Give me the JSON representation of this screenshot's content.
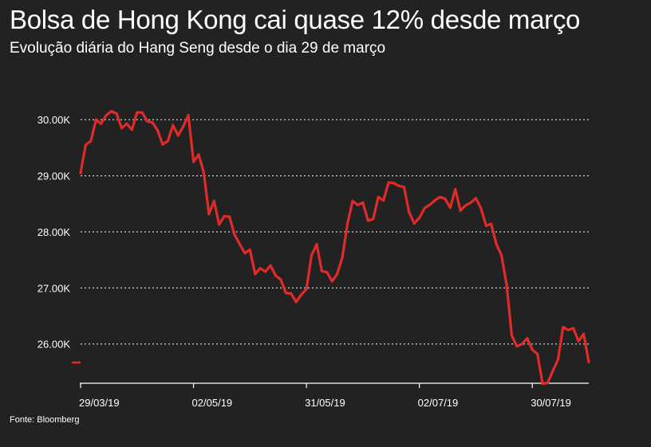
{
  "chart_data": {
    "type": "line",
    "title": "Bolsa de Hong Kong cai quase 12% desde março",
    "subtitle": "Evolução diária do Hang Seng desde o dia 29 de março",
    "source": "Fonte: Bloomberg",
    "xlabel": "",
    "ylabel": "",
    "ylim": [
      25300,
      30600
    ],
    "grid": true,
    "legend": "none",
    "y_ticks": [
      {
        "value": 30000,
        "label": "30.00K"
      },
      {
        "value": 29000,
        "label": "29.00K"
      },
      {
        "value": 28000,
        "label": "28.00K"
      },
      {
        "value": 27000,
        "label": "27.00K"
      },
      {
        "value": 26000,
        "label": "26.00K"
      }
    ],
    "x_ticks": [
      {
        "index": 0,
        "label": "29/03/19"
      },
      {
        "index": 22,
        "label": "02/05/19"
      },
      {
        "index": 44,
        "label": "31/05/19"
      },
      {
        "index": 66,
        "label": "02/07/19"
      },
      {
        "index": 88,
        "label": "30/07/19"
      }
    ],
    "series": [
      {
        "name": "Hang Seng",
        "color": "#e02b2b",
        "values": [
          29050,
          29550,
          29620,
          30000,
          29930,
          30080,
          30150,
          30110,
          29850,
          29930,
          29820,
          30130,
          30130,
          29970,
          29950,
          29810,
          29560,
          29620,
          29900,
          29720,
          29880,
          30080,
          29250,
          29380,
          29060,
          28320,
          28550,
          28130,
          28280,
          28270,
          27950,
          27780,
          27620,
          27680,
          27250,
          27350,
          27290,
          27400,
          27220,
          27150,
          26910,
          26900,
          26750,
          26880,
          26980,
          27580,
          27780,
          27300,
          27280,
          27120,
          27250,
          27550,
          28150,
          28550,
          28480,
          28520,
          28200,
          28230,
          28620,
          28560,
          28880,
          28870,
          28820,
          28800,
          28350,
          28150,
          28250,
          28420,
          28480,
          28560,
          28620,
          28590,
          28430,
          28760,
          28380,
          28470,
          28520,
          28600,
          28420,
          28110,
          28140,
          27780,
          27580,
          27050,
          26150,
          25960,
          26000,
          26100,
          25900,
          25820,
          25290,
          25310,
          25520,
          25720,
          26300,
          26250,
          26280,
          26050,
          26180,
          25680
        ]
      }
    ]
  }
}
